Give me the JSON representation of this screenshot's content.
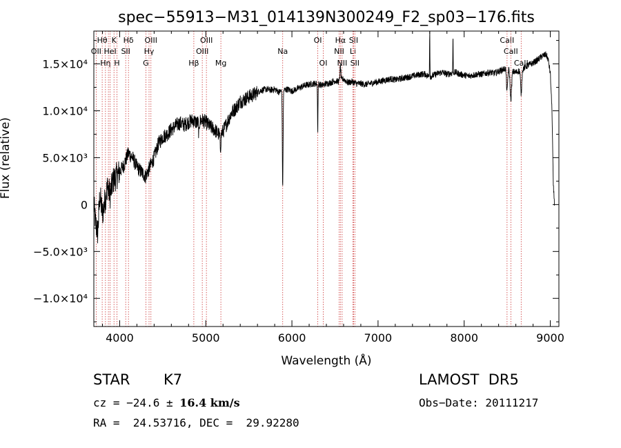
{
  "chart_data": {
    "type": "line",
    "title": "spec−55913−M31_014139N300249_F2_sp03−176.fits",
    "xlabel": "Wavelength (Å)",
    "ylabel": "Flux (relative)",
    "xlim": [
      3700,
      9100
    ],
    "ylim": [
      -13000,
      18500
    ],
    "grid": false,
    "line_color": "#000000",
    "marker_color": "#cc3333",
    "x_ticks": [
      {
        "v": 4000,
        "label": "4000"
      },
      {
        "v": 5000,
        "label": "5000"
      },
      {
        "v": 6000,
        "label": "6000"
      },
      {
        "v": 7000,
        "label": "7000"
      },
      {
        "v": 8000,
        "label": "8000"
      },
      {
        "v": 9000,
        "label": "9000"
      }
    ],
    "y_ticks": [
      {
        "v": -10000,
        "label": "−1.0×10⁴"
      },
      {
        "v": -5000,
        "label": "−5.0×10³"
      },
      {
        "v": 0,
        "label": "0"
      },
      {
        "v": 5000,
        "label": "5.0×10³"
      },
      {
        "v": 10000,
        "label": "1.0×10⁴"
      },
      {
        "v": 15000,
        "label": "1.5×10⁴"
      }
    ],
    "line_markers": [
      {
        "x": 3797,
        "label": "Hθ",
        "row": 0
      },
      {
        "x": 3835,
        "label": "Hη",
        "row": 2
      },
      {
        "x": 3727,
        "label": "OII",
        "row": 1
      },
      {
        "x": 3869,
        "label": "",
        "row": 2
      },
      {
        "x": 3889,
        "label": "HeI",
        "row": 1
      },
      {
        "x": 3934,
        "label": "K",
        "row": 0
      },
      {
        "x": 3969,
        "label": "H",
        "row": 2
      },
      {
        "x": 4070,
        "label": "SII",
        "row": 1
      },
      {
        "x": 4102,
        "label": "Hδ",
        "row": 0
      },
      {
        "x": 4304,
        "label": "G",
        "row": 2
      },
      {
        "x": 4341,
        "label": "Hγ",
        "row": 1
      },
      {
        "x": 4363,
        "label": "OIII",
        "row": 0
      },
      {
        "x": 4861,
        "label": "Hβ",
        "row": 2
      },
      {
        "x": 4959,
        "label": "OIII",
        "row": 1
      },
      {
        "x": 5007,
        "label": "OIII",
        "row": 0
      },
      {
        "x": 5175,
        "label": "Mg",
        "row": 2
      },
      {
        "x": 5893,
        "label": "Na",
        "row": 1
      },
      {
        "x": 6300,
        "label": "OI",
        "row": 0
      },
      {
        "x": 6364,
        "label": "OI",
        "row": 2
      },
      {
        "x": 6548,
        "label": "NII",
        "row": 1
      },
      {
        "x": 6563,
        "label": "Hα",
        "row": 0
      },
      {
        "x": 6583,
        "label": "NII",
        "row": 2
      },
      {
        "x": 6708,
        "label": "Li",
        "row": 1
      },
      {
        "x": 6716,
        "label": "SII",
        "row": 0
      },
      {
        "x": 6731,
        "label": "SII",
        "row": 2
      },
      {
        "x": 8498,
        "label": "CaII",
        "row": 0
      },
      {
        "x": 8542,
        "label": "CaII",
        "row": 1
      },
      {
        "x": 8662,
        "label": "CaII",
        "row": 2
      }
    ],
    "spectrum_anchors": [
      [
        3700,
        0
      ],
      [
        3720,
        -2000
      ],
      [
        3745,
        -3000
      ],
      [
        3770,
        1000
      ],
      [
        3800,
        -1000
      ],
      [
        3830,
        500
      ],
      [
        3860,
        2000
      ],
      [
        3890,
        1000
      ],
      [
        3920,
        2500
      ],
      [
        3960,
        3000
      ],
      [
        4000,
        3500
      ],
      [
        4050,
        4200
      ],
      [
        4100,
        5500
      ],
      [
        4150,
        5000
      ],
      [
        4200,
        4000
      ],
      [
        4250,
        3500
      ],
      [
        4300,
        3000
      ],
      [
        4350,
        4000
      ],
      [
        4400,
        5000
      ],
      [
        4450,
        6500
      ],
      [
        4500,
        7200
      ],
      [
        4550,
        7500
      ],
      [
        4600,
        8000
      ],
      [
        4650,
        8400
      ],
      [
        4700,
        8700
      ],
      [
        4750,
        8500
      ],
      [
        4800,
        8800
      ],
      [
        4850,
        9000
      ],
      [
        4900,
        8700
      ],
      [
        4950,
        9000
      ],
      [
        5000,
        8800
      ],
      [
        5050,
        8300
      ],
      [
        5100,
        8000
      ],
      [
        5150,
        7500
      ],
      [
        5200,
        7800
      ],
      [
        5250,
        8800
      ],
      [
        5300,
        9800
      ],
      [
        5350,
        10300
      ],
      [
        5400,
        11000
      ],
      [
        5450,
        11200
      ],
      [
        5500,
        11500
      ],
      [
        5550,
        11700
      ],
      [
        5600,
        12000
      ],
      [
        5650,
        12200
      ],
      [
        5700,
        12300
      ],
      [
        5750,
        12200
      ],
      [
        5800,
        12300
      ],
      [
        5850,
        12000
      ],
      [
        5900,
        12200
      ],
      [
        5950,
        12300
      ],
      [
        6000,
        12100
      ],
      [
        6050,
        12300
      ],
      [
        6100,
        12500
      ],
      [
        6150,
        12700
      ],
      [
        6200,
        12800
      ],
      [
        6250,
        12900
      ],
      [
        6300,
        12900
      ],
      [
        6350,
        12700
      ],
      [
        6400,
        12900
      ],
      [
        6450,
        13000
      ],
      [
        6500,
        13200
      ],
      [
        6550,
        13100
      ],
      [
        6600,
        13400
      ],
      [
        6650,
        13000
      ],
      [
        6700,
        13100
      ],
      [
        6750,
        12900
      ],
      [
        6800,
        12900
      ],
      [
        6850,
        12800
      ],
      [
        6900,
        12900
      ],
      [
        6950,
        13000
      ],
      [
        7000,
        13100
      ],
      [
        7050,
        13200
      ],
      [
        7100,
        13300
      ],
      [
        7150,
        13400
      ],
      [
        7200,
        13300
      ],
      [
        7250,
        13400
      ],
      [
        7300,
        13500
      ],
      [
        7350,
        13600
      ],
      [
        7400,
        13700
      ],
      [
        7450,
        13800
      ],
      [
        7500,
        13900
      ],
      [
        7550,
        13900
      ],
      [
        7600,
        13600
      ],
      [
        7650,
        13800
      ],
      [
        7700,
        14000
      ],
      [
        7750,
        14100
      ],
      [
        7800,
        13900
      ],
      [
        7850,
        14000
      ],
      [
        7900,
        14100
      ],
      [
        7950,
        13900
      ],
      [
        8000,
        13800
      ],
      [
        8050,
        13700
      ],
      [
        8100,
        13800
      ],
      [
        8150,
        13900
      ],
      [
        8200,
        13900
      ],
      [
        8250,
        14000
      ],
      [
        8300,
        14100
      ],
      [
        8350,
        14000
      ],
      [
        8400,
        14200
      ],
      [
        8450,
        14400
      ],
      [
        8500,
        14600
      ],
      [
        8550,
        14200
      ],
      [
        8600,
        14100
      ],
      [
        8650,
        14300
      ],
      [
        8700,
        14600
      ],
      [
        8750,
        14900
      ],
      [
        8800,
        15100
      ],
      [
        8850,
        15400
      ],
      [
        8900,
        15800
      ],
      [
        8950,
        16000
      ],
      [
        8975,
        15500
      ],
      [
        9000,
        14000
      ],
      [
        9020,
        10000
      ],
      [
        9035,
        2000
      ],
      [
        9050,
        0
      ]
    ],
    "spectrum_features": [
      {
        "x": 5893,
        "depth": 10500,
        "width": 6
      },
      {
        "x": 6300,
        "depth": 5000,
        "width": 4
      },
      {
        "x": 6563,
        "depth": -1500,
        "width": 8
      },
      {
        "x": 7600,
        "depth": -5500,
        "width": 3
      },
      {
        "x": 7870,
        "depth": -4000,
        "width": 3
      },
      {
        "x": 8498,
        "depth": 2500,
        "width": 10
      },
      {
        "x": 8542,
        "depth": 3000,
        "width": 12
      },
      {
        "x": 8662,
        "depth": 2500,
        "width": 10
      },
      {
        "x": 4920,
        "depth": 1500,
        "width": 5
      },
      {
        "x": 5170,
        "depth": 1500,
        "width": 8
      }
    ]
  },
  "info": {
    "object_class": "STAR",
    "subclass": "K7",
    "survey": "LAMOST  DR5",
    "cz_prefix": "cz = −24.6 ± ",
    "cz_error": "16.4 km/s",
    "obs_date": "Obs−Date: 20111217",
    "coords": "RA =  24.53716, DEC =  29.92280"
  }
}
